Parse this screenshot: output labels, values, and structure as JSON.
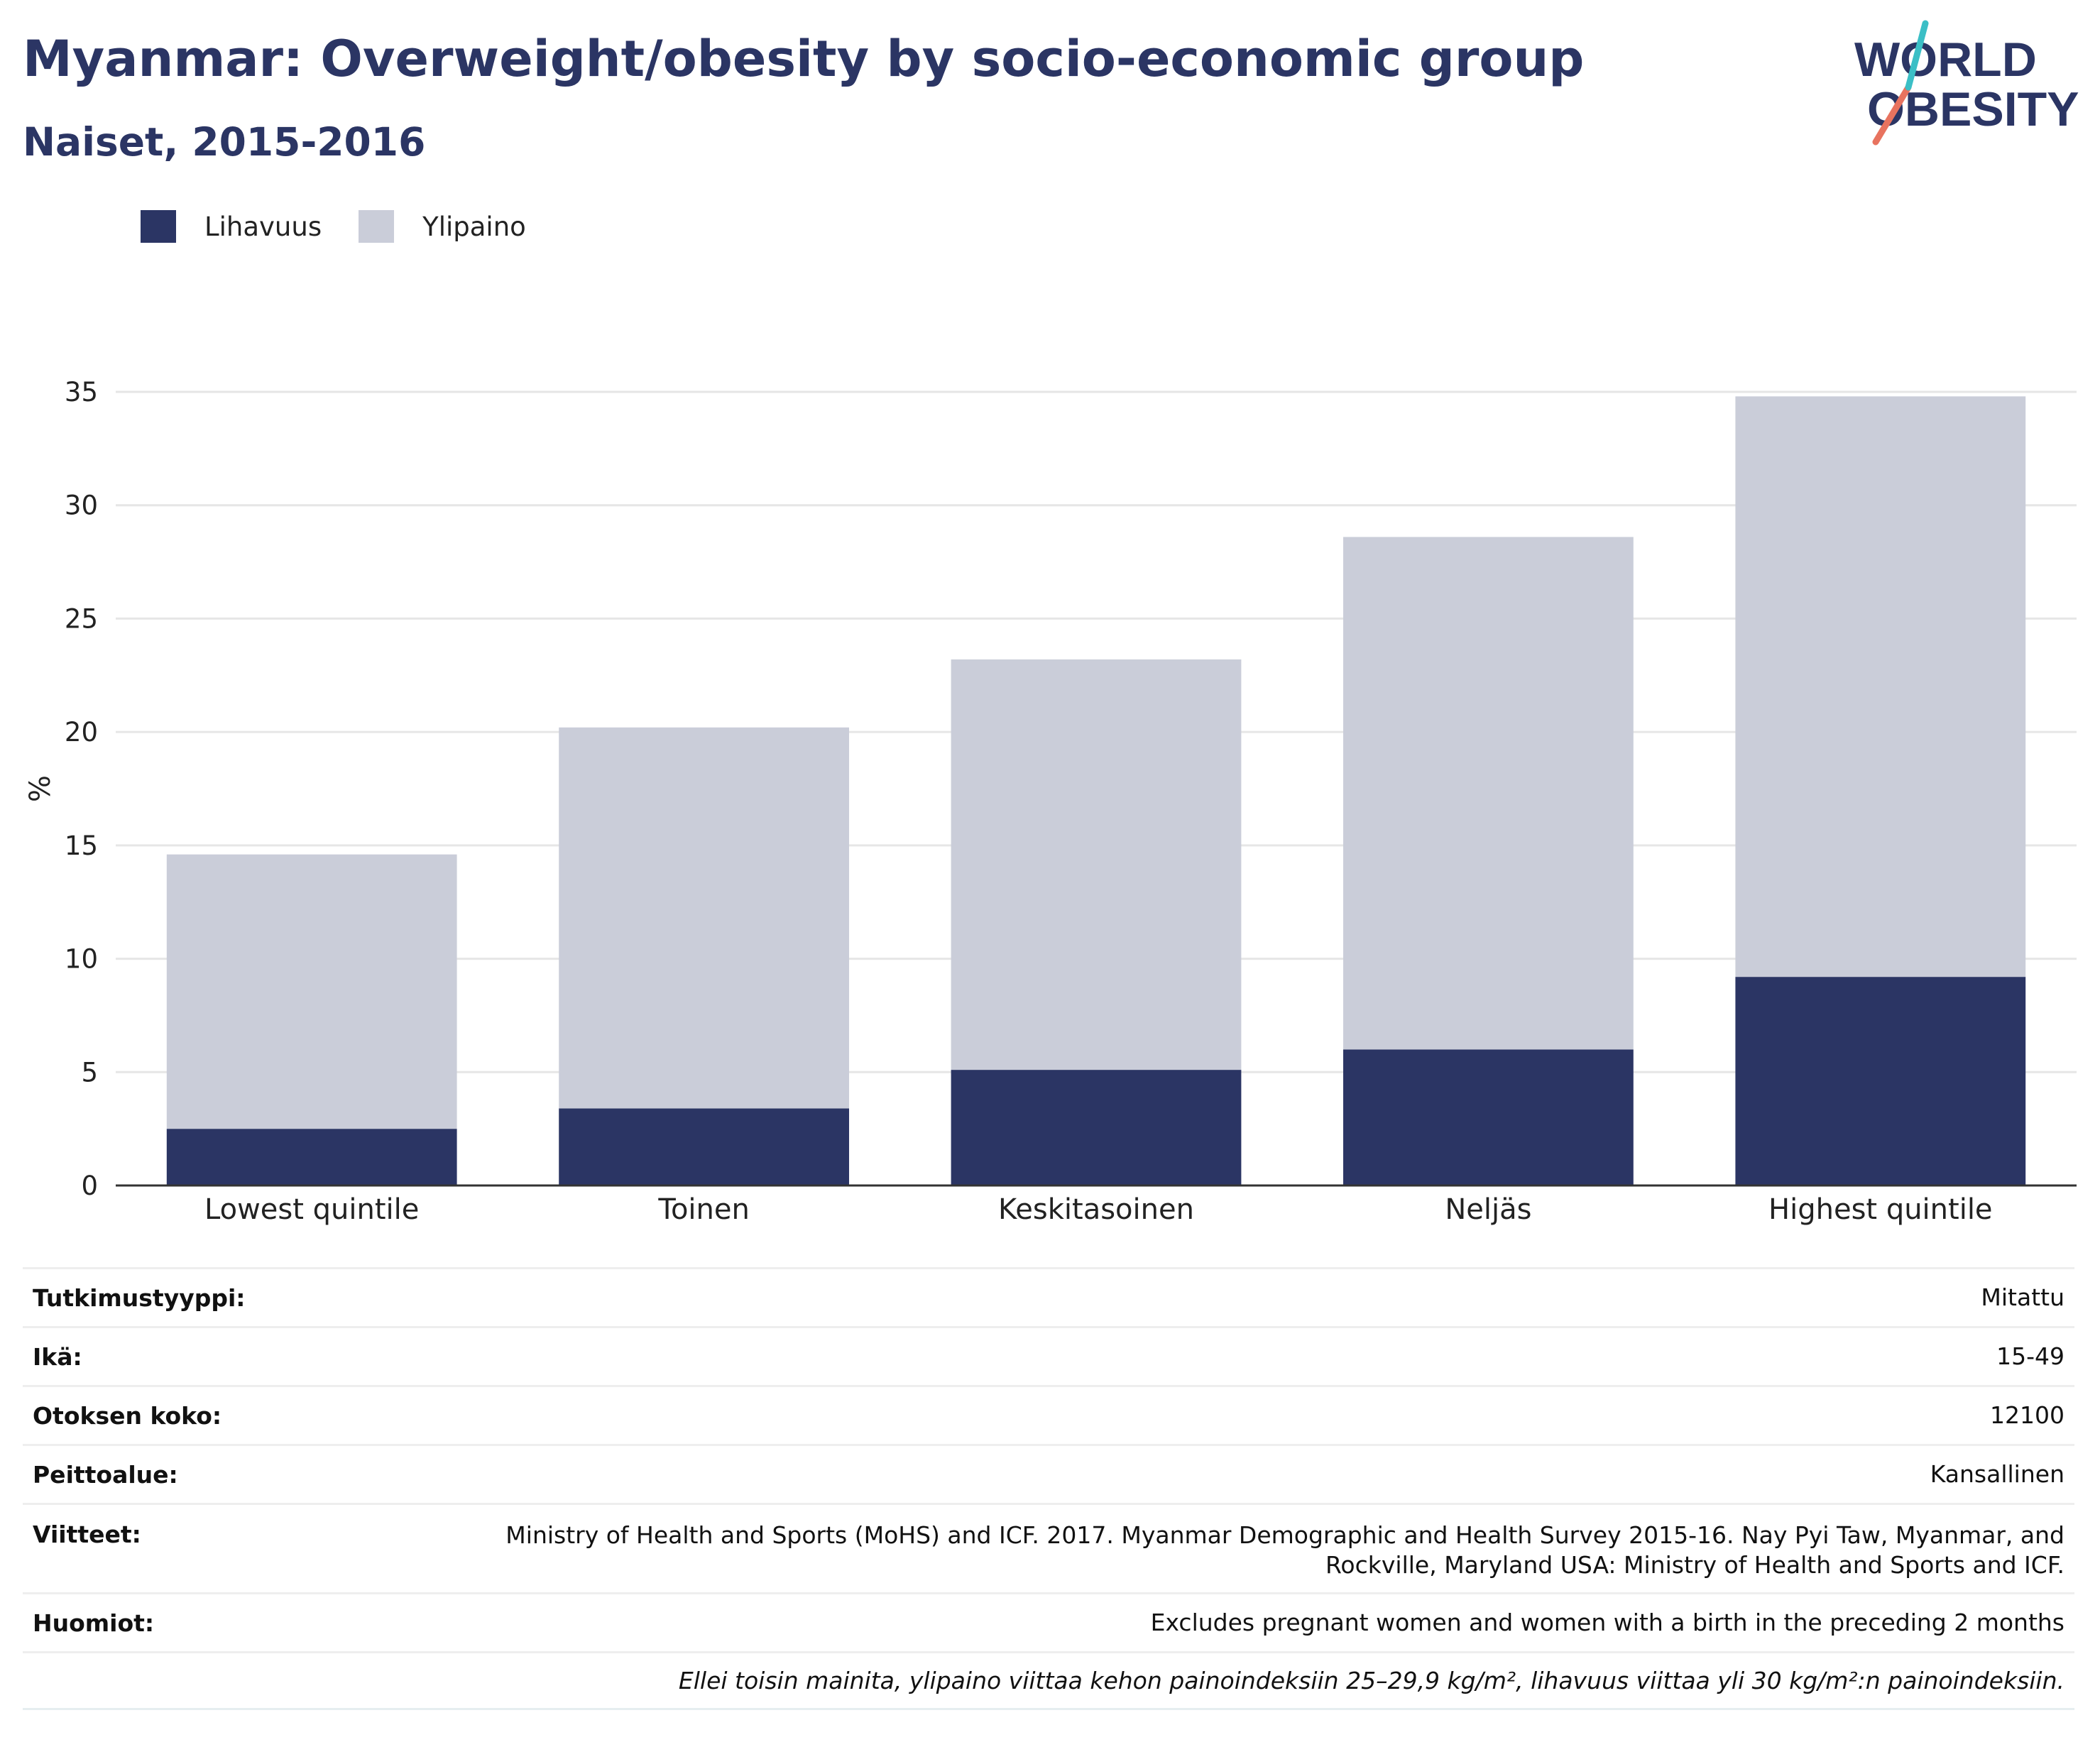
{
  "title": "Myanmar: Overweight/obesity by socio-economic group",
  "subtitle": "Naiset, 2015-2016",
  "logo": {
    "line1": "WORLD",
    "line2": "OBESITY"
  },
  "legend": [
    {
      "label": "Lihavuus",
      "color": "#2b3564"
    },
    {
      "label": "Ylipaino",
      "color": "#cacdd9"
    }
  ],
  "chart_data": {
    "type": "bar",
    "stacked": true,
    "categories": [
      "Lowest quintile",
      "Toinen",
      "Keskitasoinen",
      "Neljäs",
      "Highest quintile"
    ],
    "series": [
      {
        "name": "Lihavuus",
        "color": "#2b3564",
        "values": [
          2.5,
          3.4,
          5.1,
          6.0,
          9.2
        ]
      },
      {
        "name": "Ylipaino",
        "color": "#cacdd9",
        "values": [
          12.1,
          16.8,
          18.1,
          22.6,
          25.6
        ]
      }
    ],
    "totals": [
      14.6,
      20.2,
      23.2,
      28.6,
      34.8
    ],
    "ylabel": "%",
    "ylim": [
      0,
      35
    ],
    "yticks": [
      0,
      5,
      10,
      15,
      20,
      25,
      30,
      35
    ],
    "grid": true,
    "legend_position": "top-left"
  },
  "info": [
    {
      "label": "Tutkimustyyppi:",
      "value": "Mitattu"
    },
    {
      "label": "Ikä:",
      "value": "15-49"
    },
    {
      "label": "Otoksen koko:",
      "value": "12100"
    },
    {
      "label": "Peittoalue:",
      "value": "Kansallinen"
    },
    {
      "label": "Viitteet:",
      "value_line1": "Ministry of Health and Sports (MoHS) and ICF. 2017. Myanmar Demographic and Health Survey 2015-16. Nay Pyi Taw, Myanmar, and",
      "value_line2": "Rockville, Maryland USA: Ministry of Health and Sports and ICF."
    },
    {
      "label": "Huomiot:",
      "value": "Excludes pregnant women and women with a birth in the preceding 2 months"
    }
  ],
  "note": "Ellei toisin mainita, ylipaino viittaa kehon painoindeksiin 25–29,9 kg/m², lihavuus viittaa yli 30 kg/m²:n painoindeksiin."
}
